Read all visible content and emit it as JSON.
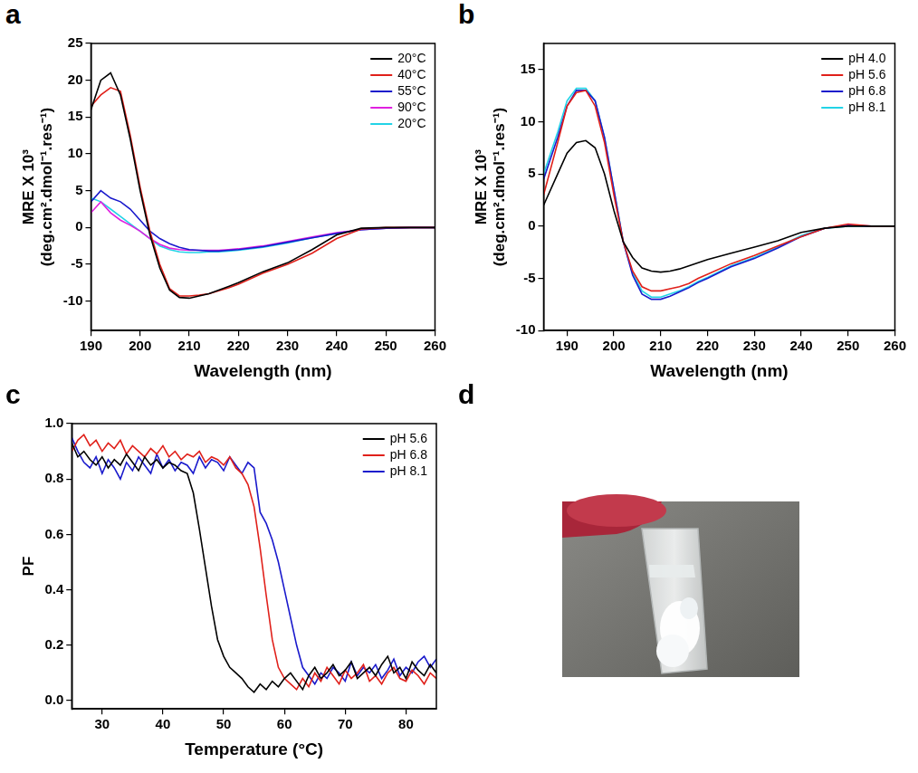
{
  "chart_data": [
    {
      "type": "line",
      "panel": "a",
      "x_label": "Wavelength (nm)",
      "y_label": [
        "MRE X 10³",
        "(deg.cm².dmol⁻¹.res⁻¹)"
      ],
      "xlim": [
        190,
        260
      ],
      "xticks": [
        190,
        200,
        210,
        220,
        230,
        240,
        250,
        260
      ],
      "ylim": [
        -14,
        25
      ],
      "yticks": [
        -10,
        -5,
        0,
        5,
        10,
        15,
        20,
        25
      ],
      "grid": false,
      "legend": "top right",
      "x": [
        190,
        192,
        194,
        196,
        198,
        200,
        202,
        204,
        206,
        208,
        210,
        212,
        214,
        216,
        218,
        220,
        225,
        230,
        235,
        240,
        245,
        250,
        255,
        260
      ],
      "series": [
        {
          "name": "20°C",
          "color": "#000000",
          "values": [
            16,
            20,
            21,
            18,
            12,
            5,
            -1,
            -5.5,
            -8.5,
            -9.5,
            -9.6,
            -9.3,
            -9,
            -8.5,
            -8,
            -7.5,
            -6,
            -4.8,
            -3,
            -1,
            -0.1,
            0,
            0,
            0
          ]
        },
        {
          "name": "40°C",
          "color": "#e0201a",
          "values": [
            16.5,
            18,
            19,
            18.5,
            12.5,
            5.5,
            -0.5,
            -5,
            -8.3,
            -9.3,
            -9.3,
            -9.2,
            -9,
            -8.6,
            -8.2,
            -7.7,
            -6.2,
            -5,
            -3.5,
            -1.5,
            -0.2,
            0,
            0,
            0
          ]
        },
        {
          "name": "55°C",
          "color": "#1a1acc",
          "values": [
            3.5,
            5,
            4,
            3.5,
            2.5,
            1,
            -0.5,
            -1.5,
            -2.2,
            -2.7,
            -3,
            -3.1,
            -3.2,
            -3.2,
            -3.1,
            -3,
            -2.6,
            -2,
            -1.4,
            -0.8,
            -0.3,
            -0.1,
            0,
            0
          ]
        },
        {
          "name": "90°C",
          "color": "#e020e0",
          "values": [
            2,
            3.5,
            2,
            1,
            0.3,
            -0.5,
            -1.5,
            -2.3,
            -2.8,
            -3,
            -3.1,
            -3.1,
            -3.1,
            -3.1,
            -3,
            -2.9,
            -2.5,
            -1.9,
            -1.3,
            -0.7,
            -0.3,
            -0.1,
            0,
            0
          ]
        },
        {
          "name": "20°C",
          "color": "#22d3e6",
          "values": [
            4,
            3.5,
            2.5,
            1.5,
            0.5,
            -0.5,
            -1.5,
            -2.5,
            -3,
            -3.3,
            -3.4,
            -3.4,
            -3.3,
            -3.3,
            -3.2,
            -3.1,
            -2.7,
            -2.1,
            -1.4,
            -0.8,
            -0.3,
            -0.1,
            0,
            0
          ]
        }
      ]
    },
    {
      "type": "line",
      "panel": "b",
      "x_label": "Wavelength (nm)",
      "y_label": [
        "MRE X 10³",
        "(deg.cm².dmol⁻¹.res⁻¹)"
      ],
      "xlim": [
        185,
        260
      ],
      "xticks": [
        190,
        200,
        210,
        220,
        230,
        240,
        250,
        260
      ],
      "ylim": [
        -10,
        17.5
      ],
      "yticks": [
        -10,
        -5,
        0,
        5,
        10,
        15
      ],
      "grid": false,
      "legend": "top right",
      "x": [
        185,
        188,
        190,
        192,
        194,
        196,
        198,
        200,
        202,
        204,
        206,
        208,
        210,
        212,
        214,
        216,
        218,
        220,
        225,
        230,
        235,
        240,
        245,
        250,
        255,
        260
      ],
      "series": [
        {
          "name": "pH 4.0",
          "color": "#000000",
          "values": [
            2,
            5,
            7,
            8,
            8.2,
            7.5,
            5,
            1.5,
            -1.5,
            -3,
            -4,
            -4.3,
            -4.4,
            -4.3,
            -4.1,
            -3.8,
            -3.5,
            -3.2,
            -2.6,
            -2,
            -1.4,
            -0.6,
            -0.2,
            0,
            0,
            0
          ]
        },
        {
          "name": "pH 5.6",
          "color": "#e0201a",
          "values": [
            3,
            8,
            11.5,
            12.8,
            13,
            11.5,
            8,
            3,
            -1.5,
            -4.3,
            -5.8,
            -6.2,
            -6.2,
            -6,
            -5.8,
            -5.5,
            -5,
            -4.6,
            -3.6,
            -2.8,
            -1.9,
            -1,
            -0.2,
            0.2,
            0,
            0
          ]
        },
        {
          "name": "pH 6.8",
          "color": "#1a1acc",
          "values": [
            4.5,
            8.5,
            11.5,
            13,
            13,
            12,
            8.5,
            3.5,
            -1.5,
            -4.7,
            -6.5,
            -7,
            -7,
            -6.7,
            -6.3,
            -5.9,
            -5.4,
            -5,
            -3.9,
            -3.1,
            -2.1,
            -1,
            -0.2,
            0.1,
            0,
            0
          ]
        },
        {
          "name": "pH 8.1",
          "color": "#22d3e6",
          "values": [
            5,
            9,
            12,
            13.2,
            13.2,
            12,
            8.5,
            3.5,
            -1.5,
            -4.5,
            -6.2,
            -6.8,
            -6.8,
            -6.5,
            -6.2,
            -5.8,
            -5.3,
            -4.9,
            -3.8,
            -3,
            -2,
            -0.9,
            -0.2,
            0,
            0,
            0
          ]
        }
      ]
    },
    {
      "type": "line",
      "panel": "c",
      "x_label": "Temperature (°C)",
      "y_label": "PF",
      "xlim": [
        25,
        85
      ],
      "xticks": [
        30,
        40,
        50,
        60,
        70,
        80
      ],
      "ylim": [
        -0.03,
        1
      ],
      "yticks": [
        {
          "value": 0,
          "label": "0.0"
        },
        0.2,
        0.4,
        0.6,
        0.8,
        {
          "value": 1,
          "label": "1.0"
        }
      ],
      "grid": false,
      "legend": "top right",
      "x": [
        25,
        26,
        27,
        28,
        29,
        30,
        31,
        32,
        33,
        34,
        35,
        36,
        37,
        38,
        39,
        40,
        41,
        42,
        43,
        44,
        45,
        46,
        47,
        48,
        49,
        50,
        51,
        52,
        53,
        54,
        55,
        56,
        57,
        58,
        59,
        60,
        61,
        62,
        63,
        64,
        65,
        66,
        67,
        68,
        69,
        70,
        71,
        72,
        73,
        74,
        75,
        76,
        77,
        78,
        79,
        80,
        81,
        82,
        83,
        84,
        85
      ],
      "series": [
        {
          "name": "pH 5.6",
          "color": "#000000",
          "values": [
            0.93,
            0.88,
            0.9,
            0.87,
            0.85,
            0.88,
            0.84,
            0.87,
            0.85,
            0.89,
            0.86,
            0.83,
            0.88,
            0.85,
            0.87,
            0.84,
            0.86,
            0.85,
            0.83,
            0.82,
            0.75,
            0.62,
            0.48,
            0.34,
            0.22,
            0.16,
            0.12,
            0.1,
            0.08,
            0.05,
            0.03,
            0.06,
            0.04,
            0.07,
            0.05,
            0.08,
            0.1,
            0.07,
            0.04,
            0.09,
            0.12,
            0.08,
            0.1,
            0.13,
            0.09,
            0.11,
            0.14,
            0.08,
            0.1,
            0.12,
            0.09,
            0.13,
            0.16,
            0.1,
            0.12,
            0.08,
            0.14,
            0.11,
            0.09,
            0.13,
            0.1
          ]
        },
        {
          "name": "pH 6.8",
          "color": "#e0201a",
          "values": [
            0.9,
            0.94,
            0.96,
            0.92,
            0.94,
            0.9,
            0.93,
            0.91,
            0.94,
            0.89,
            0.92,
            0.9,
            0.88,
            0.91,
            0.89,
            0.92,
            0.88,
            0.9,
            0.87,
            0.89,
            0.88,
            0.9,
            0.86,
            0.88,
            0.87,
            0.85,
            0.88,
            0.84,
            0.82,
            0.78,
            0.7,
            0.55,
            0.38,
            0.22,
            0.12,
            0.08,
            0.06,
            0.04,
            0.08,
            0.05,
            0.1,
            0.07,
            0.12,
            0.09,
            0.06,
            0.11,
            0.08,
            0.1,
            0.13,
            0.07,
            0.09,
            0.06,
            0.1,
            0.12,
            0.08,
            0.07,
            0.11,
            0.09,
            0.06,
            0.1,
            0.08
          ]
        },
        {
          "name": "pH 8.1",
          "color": "#1a1acc",
          "values": [
            0.95,
            0.9,
            0.86,
            0.84,
            0.88,
            0.82,
            0.87,
            0.84,
            0.8,
            0.86,
            0.83,
            0.88,
            0.85,
            0.82,
            0.89,
            0.84,
            0.87,
            0.83,
            0.86,
            0.85,
            0.82,
            0.88,
            0.84,
            0.87,
            0.86,
            0.83,
            0.88,
            0.85,
            0.82,
            0.86,
            0.84,
            0.68,
            0.64,
            0.58,
            0.5,
            0.4,
            0.3,
            0.2,
            0.12,
            0.09,
            0.06,
            0.1,
            0.08,
            0.12,
            0.1,
            0.07,
            0.14,
            0.09,
            0.12,
            0.1,
            0.13,
            0.08,
            0.11,
            0.15,
            0.09,
            0.12,
            0.1,
            0.14,
            0.16,
            0.12,
            0.15
          ]
        }
      ]
    },
    {
      "type": "image",
      "panel": "d"
    }
  ]
}
